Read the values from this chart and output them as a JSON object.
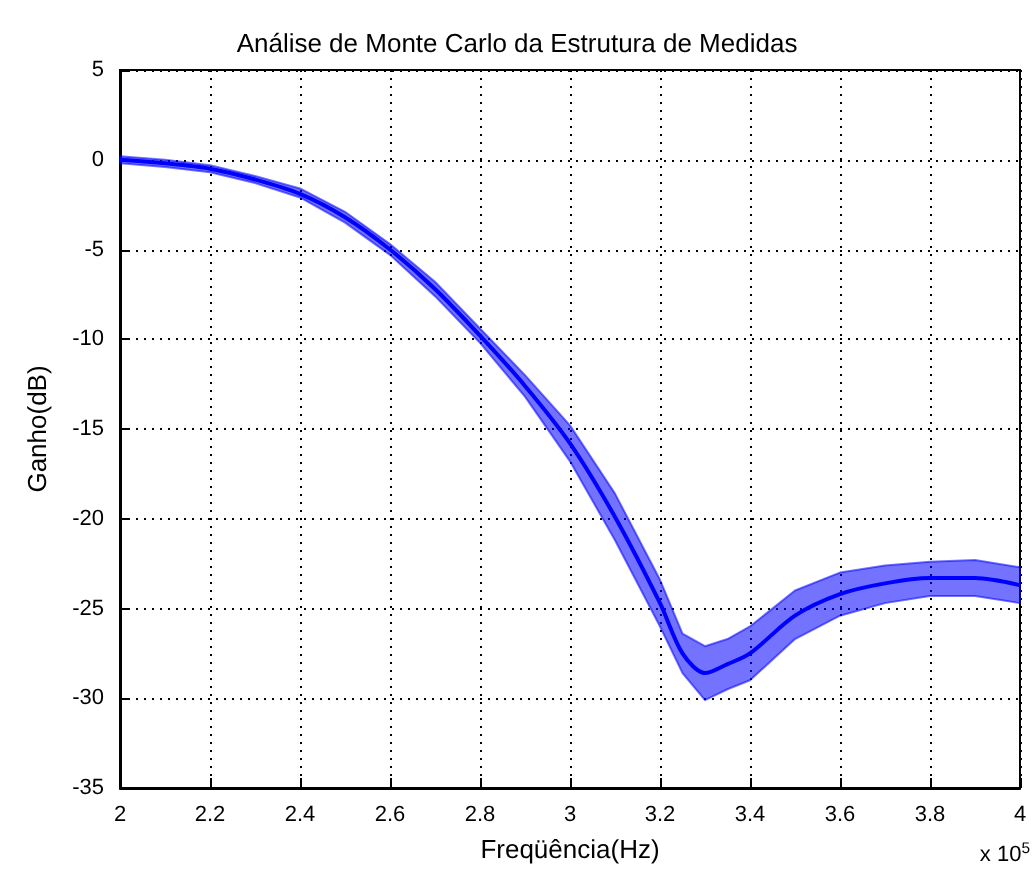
{
  "chart_data": {
    "type": "line",
    "title": "Análise de Monte Carlo da Estrutura de Medidas",
    "xlabel": "Freqüência(Hz)",
    "ylabel": "Ganho(dB)",
    "annotations": [
      "x 10$^{5}$"
    ],
    "x": [
      2.0,
      2.1,
      2.2,
      2.3,
      2.4,
      2.5,
      2.6,
      2.7,
      2.8,
      2.9,
      3.0,
      3.1,
      3.2,
      3.25,
      3.3,
      3.35,
      3.4,
      3.5,
      3.6,
      3.7,
      3.8,
      3.9,
      4.0
    ],
    "series": [
      {
        "color": "#0000ff",
        "values": [
          0,
          -0.2,
          -0.5,
          -1.1,
          -1.9,
          -3.2,
          -5,
          -7.2,
          -9.8,
          -12.6,
          -15.8,
          -19.9,
          -24.7,
          -27.5,
          -28.6,
          -28.1,
          -27.5,
          -25.4,
          -24.2,
          -23.6,
          -23.3,
          -23.3,
          -23.7
        ],
        "lower": [
          -0.2,
          -0.4,
          -0.7,
          -1.3,
          -2.1,
          -3.5,
          -5.3,
          -7.6,
          -10.2,
          -13.2,
          -16.8,
          -21.2,
          -26.0,
          -28.6,
          -30.1,
          -29.5,
          -29.0,
          -26.7,
          -25.4,
          -24.7,
          -24.3,
          -24.3,
          -24.7
        ],
        "upper": [
          0.2,
          0,
          -0.3,
          -0.9,
          -1.6,
          -2.9,
          -4.7,
          -6.8,
          -9.4,
          -12.0,
          -14.8,
          -18.6,
          -23.4,
          -26.4,
          -27.1,
          -26.7,
          -26.0,
          -24.0,
          -23.0,
          -22.6,
          -22.4,
          -22.3,
          -22.7
        ]
      }
    ],
    "xlim": [
      2,
      4
    ],
    "xticks": [
      2,
      2.2,
      2.4,
      2.6,
      2.8,
      3,
      3.2,
      3.4,
      3.6,
      3.8,
      4
    ],
    "ylim": [
      -35,
      5
    ],
    "yticks": [
      -35,
      -30,
      -25,
      -20,
      -15,
      -10,
      -5,
      0,
      5
    ],
    "grid": true,
    "legend": false,
    "marker": "none"
  }
}
